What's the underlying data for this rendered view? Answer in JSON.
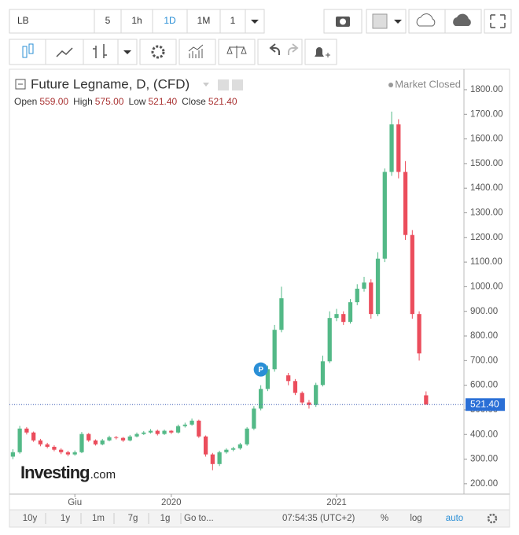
{
  "toolbar": {
    "symbol": "LB",
    "intervals": [
      "5",
      "1h",
      "1D",
      "1M"
    ],
    "multiplier": "1"
  },
  "bottom_bar": {
    "ranges": [
      "10y",
      "1y",
      "1m",
      "7g",
      "1g"
    ],
    "goto": "Go to...",
    "clock": "07:54:35 (UTC+2)",
    "percent": "%",
    "log": "log",
    "auto": "auto"
  },
  "chart_data": {
    "type": "candlestick",
    "title": "Future Legname, D, (CFD)",
    "status": "Market Closed",
    "ohlc_legend": [
      {
        "name": "Open",
        "value": 559,
        "label": "559.00"
      },
      {
        "name": "High",
        "value": 575,
        "label": "575.00"
      },
      {
        "name": "Low",
        "value": 521.4,
        "label": "521.40"
      },
      {
        "name": "Close",
        "value": 521.4,
        "label": "521.40"
      }
    ],
    "categories": [
      null,
      null,
      null,
      null,
      null,
      null,
      null,
      null,
      null,
      "Giu",
      null,
      null,
      null,
      null,
      null,
      null,
      null,
      null,
      null,
      null,
      null,
      null,
      null,
      "2020",
      null,
      null,
      null,
      null,
      null,
      null,
      null,
      null,
      null,
      null,
      null,
      null,
      null,
      null,
      null,
      null,
      null,
      null,
      null,
      null,
      null,
      null,
      null,
      "2021",
      null,
      null,
      null,
      null,
      null,
      null,
      null,
      null,
      null,
      null,
      null,
      null,
      null,
      null,
      null,
      null,
      null,
      null
    ],
    "open": [
      310,
      328,
      424,
      408,
      376,
      360,
      350,
      338,
      328,
      319,
      328,
      402,
      376,
      360,
      376,
      389,
      386,
      376,
      392,
      402,
      408,
      415,
      402,
      415,
      408,
      434,
      440,
      456,
      392,
      319,
      280,
      328,
      338,
      344,
      360,
      424,
      505,
      585,
      665,
      825,
      640,
      617,
      569,
      530,
      520,
      601,
      697,
      873,
      889,
      857,
      937,
      992,
      1017,
      889,
      1114,
      1466,
      1659,
      1466,
      1210,
      889,
      559,
      null,
      null,
      null,
      null,
      null
    ],
    "high": [
      340,
      435,
      430,
      412,
      382,
      366,
      356,
      344,
      334,
      335,
      410,
      406,
      380,
      382,
      395,
      394,
      390,
      398,
      408,
      414,
      422,
      420,
      420,
      418,
      440,
      448,
      465,
      460,
      396,
      325,
      334,
      344,
      350,
      366,
      430,
      515,
      600,
      680,
      845,
      1000,
      650,
      625,
      575,
      540,
      610,
      720,
      900,
      910,
      900,
      950,
      1010,
      1040,
      1030,
      1140,
      1480,
      1711,
      1680,
      1510,
      1230,
      900,
      575,
      null,
      null,
      null,
      null,
      null
    ],
    "low": [
      300,
      322,
      400,
      370,
      352,
      344,
      332,
      320,
      312,
      314,
      324,
      370,
      355,
      356,
      372,
      380,
      370,
      372,
      388,
      398,
      404,
      396,
      398,
      402,
      404,
      428,
      436,
      386,
      310,
      255,
      272,
      322,
      332,
      338,
      354,
      418,
      498,
      576,
      655,
      815,
      600,
      560,
      520,
      505,
      512,
      595,
      690,
      860,
      845,
      850,
      925,
      980,
      870,
      880,
      1100,
      1450,
      1440,
      1190,
      870,
      700,
      521.4,
      null,
      null,
      null,
      null,
      null
    ],
    "close": [
      328,
      424,
      408,
      376,
      360,
      350,
      338,
      328,
      319,
      328,
      402,
      376,
      360,
      376,
      389,
      386,
      376,
      392,
      402,
      408,
      415,
      402,
      415,
      408,
      434,
      440,
      456,
      392,
      319,
      280,
      328,
      338,
      344,
      360,
      424,
      505,
      585,
      665,
      825,
      953,
      617,
      569,
      530,
      520,
      601,
      697,
      873,
      889,
      857,
      937,
      992,
      1017,
      889,
      1114,
      1466,
      1659,
      1466,
      1210,
      889,
      729,
      521.4,
      null,
      null,
      null,
      null,
      null
    ],
    "up_color": "#53b987",
    "down_color": "#eb4d5c",
    "last_price": {
      "value": 521.4,
      "label": "521.40"
    },
    "annotations": [
      "P"
    ],
    "watermark": {
      "brand": "Investing",
      "suffix": ".com"
    },
    "ylim": [
      158,
      1883
    ],
    "yticks": [
      {
        "value": 200,
        "label": "200.00"
      },
      {
        "value": 300,
        "label": "300.00"
      },
      {
        "value": 400,
        "label": "400.00"
      },
      {
        "value": 500,
        "label": "500.00"
      },
      {
        "value": 600,
        "label": "600.00"
      },
      {
        "value": 700,
        "label": "700.00"
      },
      {
        "value": 800,
        "label": "800.00"
      },
      {
        "value": 900,
        "label": "900.00"
      },
      {
        "value": 1000,
        "label": "1000.00"
      },
      {
        "value": 1100,
        "label": "1100.00"
      },
      {
        "value": 1200,
        "label": "1200.00"
      },
      {
        "value": 1300,
        "label": "1300.00"
      },
      {
        "value": 1400,
        "label": "1400.00"
      },
      {
        "value": 1500,
        "label": "1500.00"
      },
      {
        "value": 1600,
        "label": "1600.00"
      },
      {
        "value": 1700,
        "label": "1700.00"
      },
      {
        "value": 1800,
        "label": "1800.00"
      }
    ],
    "grid": false
  }
}
